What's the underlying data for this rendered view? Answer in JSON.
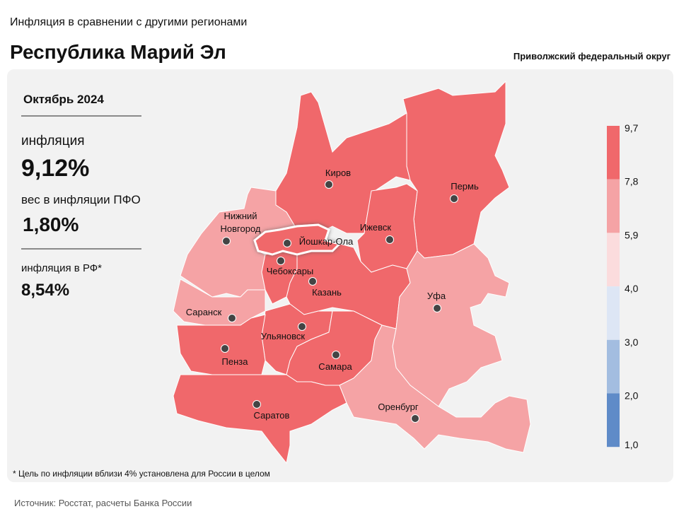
{
  "header": {
    "subtitle": "Инфляция в сравнении  с другими регионами",
    "title": "Республика Марий Эл",
    "district": "Приволжский федеральный округ"
  },
  "panel": {
    "period": "Октябрь 2024",
    "inflation_label": "инфляция",
    "inflation_value": "9,12%",
    "weight_label": "вес в инфляции  ПФО",
    "weight_value": "1,80%",
    "russia_label": "инфляция  в РФ*",
    "russia_value": "8,54%"
  },
  "legend": {
    "ticks": [
      "9,7",
      "7,8",
      "5,9",
      "4,0",
      "3,0",
      "2,0",
      "1,0"
    ],
    "colors": [
      "#f0686b",
      "#f5a3a5",
      "#fbdcdd",
      "#dde6f5",
      "#a3bde0",
      "#5f8bc8"
    ]
  },
  "regions": [
    {
      "label": [
        "Киров"
      ],
      "color": "#f0686b"
    },
    {
      "label": [
        "Пермь"
      ],
      "color": "#f0686b"
    },
    {
      "label": [
        "Ижевск"
      ],
      "color": "#f0686b"
    },
    {
      "label": [
        "Нижний",
        "Новгород"
      ],
      "color": "#f5a3a5"
    },
    {
      "label": [
        "Саранск"
      ],
      "color": "#f5a3a5"
    },
    {
      "label": [
        "Казань"
      ],
      "color": "#f0686b"
    },
    {
      "label": [
        "Чебоксары"
      ],
      "color": "#f0686b"
    },
    {
      "label": [
        "Ульяновск"
      ],
      "color": "#f0686b"
    },
    {
      "label": [
        "Пенза"
      ],
      "color": "#f0686b"
    },
    {
      "label": [
        "Самара"
      ],
      "color": "#f0686b"
    },
    {
      "label": [
        "Саратов"
      ],
      "color": "#f0686b"
    },
    {
      "label": [
        "Уфа"
      ],
      "color": "#f5a3a5"
    },
    {
      "label": [
        "Оренбург"
      ],
      "color": "#f5a3a5"
    },
    {
      "label": [
        "Йошкар-Ола"
      ],
      "color": "#f0686b"
    }
  ],
  "footnote": "* Цель по инфляции  вблизи 4% установлена для России в целом",
  "source": "Источник: Росстат, расчеты Банка России"
}
